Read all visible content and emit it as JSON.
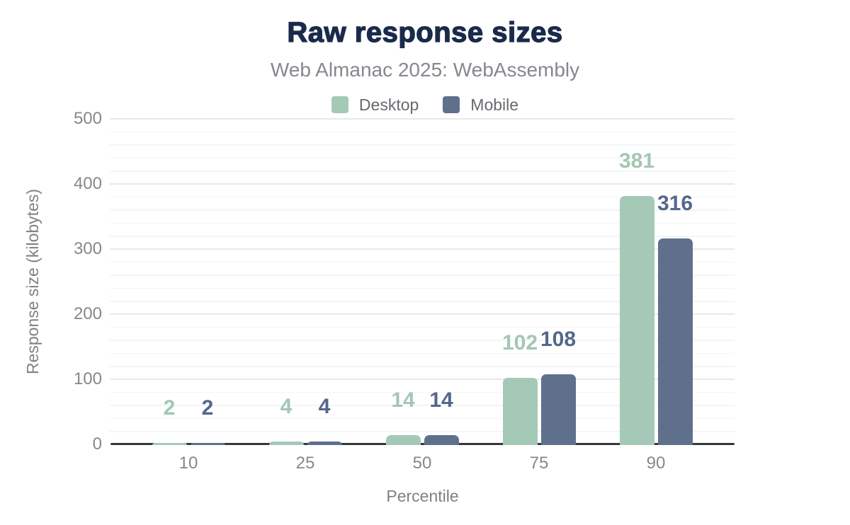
{
  "header": {
    "title": "Raw response sizes",
    "subtitle": "Web Almanac 2025: WebAssembly"
  },
  "chart_data": {
    "type": "bar",
    "title": "Raw response sizes",
    "subtitle": "Web Almanac 2025: WebAssembly",
    "xlabel": "Percentile",
    "ylabel": "Response size (kilobytes)",
    "categories": [
      "10",
      "25",
      "50",
      "75",
      "90"
    ],
    "series": [
      {
        "name": "Desktop",
        "values": [
          2,
          4,
          14,
          102,
          381
        ],
        "color": "#a5c9b7",
        "label_color": "#a3c7b4"
      },
      {
        "name": "Mobile",
        "values": [
          2,
          4,
          14,
          108,
          316
        ],
        "color": "#5f708d",
        "label_color": "#54678e"
      }
    ],
    "ylim": [
      0,
      500
    ],
    "y_major_ticks": [
      0,
      100,
      200,
      300,
      400,
      500
    ],
    "y_minor_step": 20,
    "grid": "horizontal",
    "legend_position": "top",
    "bar_value_labels": true
  },
  "colors": {
    "title": "#1b2a4b",
    "subtitle": "#85888d",
    "legend_text": "#66696e",
    "tick_text": "#85888b",
    "axis_title_text": "#7e8186",
    "axis_line": "#34383c",
    "grid_major": "#e7e9ea",
    "grid_minor": "#f4f5f6",
    "background": "#ffffff"
  }
}
